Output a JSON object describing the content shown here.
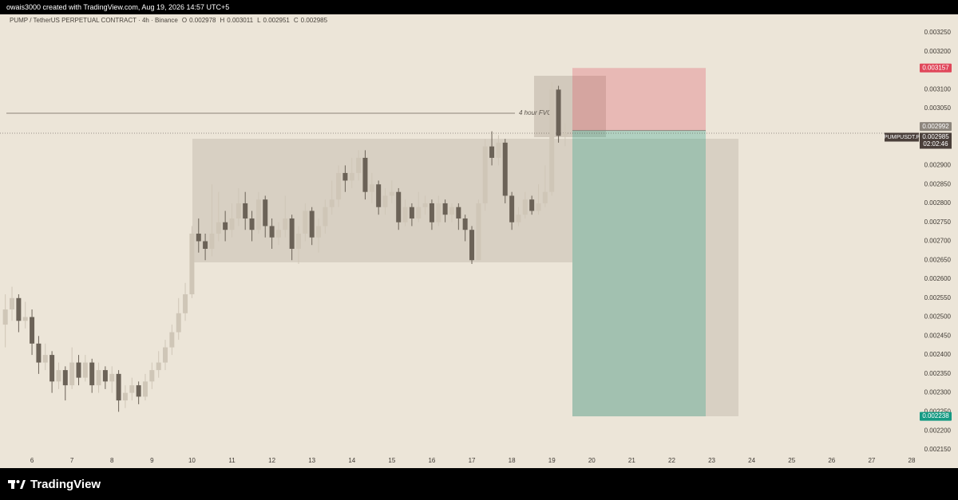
{
  "header": {
    "text": "owais3000 created with TradingView.com, Aug 19, 2026 14:57 UTC+5"
  },
  "chart_data": {
    "type": "candlestick",
    "title": "PUMP / TetherUS PERPETUAL CONTRACT · 4h · Binance",
    "ohlc_labels": [
      "O",
      "H",
      "L",
      "C"
    ],
    "x": [
      5.333,
      5.5,
      5.667,
      5.833,
      6,
      6.167,
      6.333,
      6.5,
      6.667,
      6.833,
      7,
      7.167,
      7.333,
      7.5,
      7.667,
      7.833,
      8,
      8.167,
      8.333,
      8.5,
      8.667,
      8.833,
      9,
      9.167,
      9.333,
      9.5,
      9.667,
      9.833,
      10,
      10.167,
      10.333,
      10.5,
      10.667,
      10.833,
      11,
      11.167,
      11.333,
      11.5,
      11.667,
      11.833,
      12,
      12.167,
      12.333,
      12.5,
      12.667,
      12.833,
      13,
      13.167,
      13.333,
      13.5,
      13.667,
      13.833,
      14,
      14.167,
      14.333,
      14.5,
      14.667,
      14.833,
      15,
      15.167,
      15.333,
      15.5,
      15.667,
      15.833,
      16,
      16.167,
      16.333,
      16.5,
      16.667,
      16.833,
      17,
      17.167,
      17.333,
      17.5,
      17.667,
      17.833,
      18,
      18.167,
      18.333,
      18.5,
      18.667,
      18.833,
      19,
      19.167,
      19.333
    ],
    "open": [
      0.00248,
      0.00252,
      0.00255,
      0.00249,
      0.0025,
      0.00243,
      0.00238,
      0.0024,
      0.00233,
      0.00236,
      0.00232,
      0.00238,
      0.00234,
      0.00238,
      0.00232,
      0.00236,
      0.00233,
      0.00235,
      0.00228,
      0.0023,
      0.00232,
      0.00229,
      0.00233,
      0.00236,
      0.00238,
      0.00242,
      0.00246,
      0.00251,
      0.00256,
      0.00272,
      0.0027,
      0.00268,
      0.00272,
      0.00275,
      0.00273,
      0.00276,
      0.0028,
      0.00276,
      0.00273,
      0.00281,
      0.00274,
      0.00271,
      0.00273,
      0.00276,
      0.00268,
      0.00272,
      0.00278,
      0.00271,
      0.00274,
      0.00279,
      0.00281,
      0.00288,
      0.00286,
      0.00288,
      0.00292,
      0.00283,
      0.00285,
      0.00279,
      0.00282,
      0.00283,
      0.00275,
      0.00279,
      0.00276,
      0.00279,
      0.0028,
      0.00275,
      0.0028,
      0.00277,
      0.00279,
      0.00276,
      0.00273,
      0.00265,
      0.0028,
      0.00295,
      0.00292,
      0.00296,
      0.00282,
      0.00275,
      0.00277,
      0.00281,
      0.00278,
      0.0028,
      0.00283,
      0.0031,
      0.002978
    ],
    "high": [
      0.00256,
      0.00258,
      0.00256,
      0.00254,
      0.00252,
      0.00245,
      0.00243,
      0.00241,
      0.00238,
      0.00237,
      0.00242,
      0.0024,
      0.0024,
      0.00239,
      0.00238,
      0.00237,
      0.00237,
      0.00236,
      0.00232,
      0.00234,
      0.00233,
      0.00235,
      0.00238,
      0.00241,
      0.00244,
      0.00248,
      0.00255,
      0.00259,
      0.00274,
      0.00276,
      0.00272,
      0.00285,
      0.00283,
      0.00278,
      0.0028,
      0.00284,
      0.00283,
      0.00278,
      0.00283,
      0.00282,
      0.00276,
      0.00275,
      0.00282,
      0.00277,
      0.00274,
      0.0028,
      0.00279,
      0.00276,
      0.00281,
      0.00286,
      0.0029,
      0.0029,
      0.00292,
      0.00294,
      0.00294,
      0.00288,
      0.00286,
      0.00284,
      0.00286,
      0.00284,
      0.00281,
      0.0028,
      0.00283,
      0.00282,
      0.00281,
      0.00282,
      0.00281,
      0.0028,
      0.0028,
      0.00277,
      0.00274,
      0.00281,
      0.00297,
      0.00299,
      0.00298,
      0.00297,
      0.00283,
      0.00279,
      0.00283,
      0.00282,
      0.00285,
      0.0029,
      0.00312,
      0.00311,
      0.003011
    ],
    "low": [
      0.00242,
      0.00249,
      0.00246,
      0.00247,
      0.0024,
      0.00235,
      0.00236,
      0.0023,
      0.00231,
      0.00228,
      0.00231,
      0.00232,
      0.00233,
      0.0023,
      0.0023,
      0.00231,
      0.0023,
      0.00225,
      0.00226,
      0.00228,
      0.00227,
      0.00228,
      0.00231,
      0.00234,
      0.00236,
      0.0024,
      0.00244,
      0.00249,
      0.00255,
      0.00267,
      0.00265,
      0.00266,
      0.0027,
      0.0027,
      0.00271,
      0.00274,
      0.00273,
      0.0027,
      0.00272,
      0.00271,
      0.00268,
      0.00269,
      0.00271,
      0.00265,
      0.00264,
      0.0027,
      0.00269,
      0.00267,
      0.00272,
      0.00277,
      0.00279,
      0.00283,
      0.00284,
      0.00286,
      0.00281,
      0.0028,
      0.00277,
      0.00277,
      0.0028,
      0.00273,
      0.00274,
      0.00274,
      0.00275,
      0.00277,
      0.00273,
      0.00274,
      0.00275,
      0.00275,
      0.00273,
      0.0027,
      0.00264,
      0.00265,
      0.00278,
      0.0029,
      0.0029,
      0.0028,
      0.00273,
      0.00274,
      0.00276,
      0.00277,
      0.00277,
      0.00279,
      0.00282,
      0.00296,
      0.002951
    ],
    "close": [
      0.00252,
      0.00255,
      0.00249,
      0.0025,
      0.00243,
      0.00238,
      0.0024,
      0.00233,
      0.00236,
      0.00232,
      0.00238,
      0.00234,
      0.00238,
      0.00232,
      0.00236,
      0.00233,
      0.00235,
      0.00228,
      0.0023,
      0.00232,
      0.00229,
      0.00233,
      0.00236,
      0.00238,
      0.00242,
      0.00246,
      0.00251,
      0.00256,
      0.00272,
      0.0027,
      0.00268,
      0.00272,
      0.00275,
      0.00273,
      0.00276,
      0.0028,
      0.00276,
      0.00273,
      0.00281,
      0.00274,
      0.00271,
      0.00273,
      0.00276,
      0.00268,
      0.00272,
      0.00278,
      0.00271,
      0.00274,
      0.00279,
      0.00281,
      0.00288,
      0.00286,
      0.00288,
      0.00292,
      0.00283,
      0.00285,
      0.00279,
      0.00282,
      0.00283,
      0.00275,
      0.00279,
      0.00276,
      0.00279,
      0.0028,
      0.00275,
      0.0028,
      0.00277,
      0.00279,
      0.00276,
      0.00273,
      0.00265,
      0.0028,
      0.00295,
      0.00292,
      0.00296,
      0.00282,
      0.00275,
      0.00277,
      0.00281,
      0.00278,
      0.0028,
      0.00283,
      0.0031,
      0.002978,
      0.002985
    ],
    "colors": {
      "up": "#cfc6b7",
      "down": "#6b6257"
    },
    "xlim": [
      5.2,
      28.12
    ],
    "xticks": [
      6,
      7,
      8,
      9,
      10,
      11,
      12,
      13,
      14,
      15,
      16,
      17,
      18,
      19,
      20,
      21,
      22,
      23,
      24,
      25,
      26,
      27,
      28
    ],
    "ylim": [
      0.00212,
      0.003285
    ],
    "yticks": [
      {
        "value": 0.00215,
        "label": "0.002150"
      },
      {
        "value": 0.0022,
        "label": "0.002200"
      },
      {
        "value": 0.00225,
        "label": "0.002250"
      },
      {
        "value": 0.0023,
        "label": "0.002300"
      },
      {
        "value": 0.00235,
        "label": "0.002350"
      },
      {
        "value": 0.0024,
        "label": "0.002400"
      },
      {
        "value": 0.00245,
        "label": "0.002450"
      },
      {
        "value": 0.0025,
        "label": "0.002500"
      },
      {
        "value": 0.00255,
        "label": "0.002550"
      },
      {
        "value": 0.0026,
        "label": "0.002600"
      },
      {
        "value": 0.00265,
        "label": "0.002650"
      },
      {
        "value": 0.0027,
        "label": "0.002700"
      },
      {
        "value": 0.00275,
        "label": "0.002750"
      },
      {
        "value": 0.0028,
        "label": "0.002800"
      },
      {
        "value": 0.00285,
        "label": "0.002850"
      },
      {
        "value": 0.0029,
        "label": "0.002900"
      },
      {
        "value": 0.00295,
        "label": "0.002950"
      },
      {
        "value": 0.003,
        "label": "0.003000"
      },
      {
        "value": 0.00305,
        "label": "0.003050"
      },
      {
        "value": 0.0031,
        "label": "0.003100"
      },
      {
        "value": 0.00315,
        "label": "0.003150"
      },
      {
        "value": 0.0032,
        "label": "0.003200"
      },
      {
        "value": 0.00325,
        "label": "0.003250"
      }
    ],
    "grid": false,
    "annotation": "4 hour FVG",
    "position": {
      "entry": 0.002992,
      "stop": 0.003157,
      "target": 0.002238,
      "stop_color": "#e0475a",
      "target_color": "#159a83",
      "entry_color": "#8c857c"
    },
    "last_price_tag": {
      "symbol": "PUMPUSDT.P",
      "countdown": "02:02:46",
      "color": "#4a3f3a"
    }
  },
  "footer": {
    "brand": "TradingView"
  }
}
